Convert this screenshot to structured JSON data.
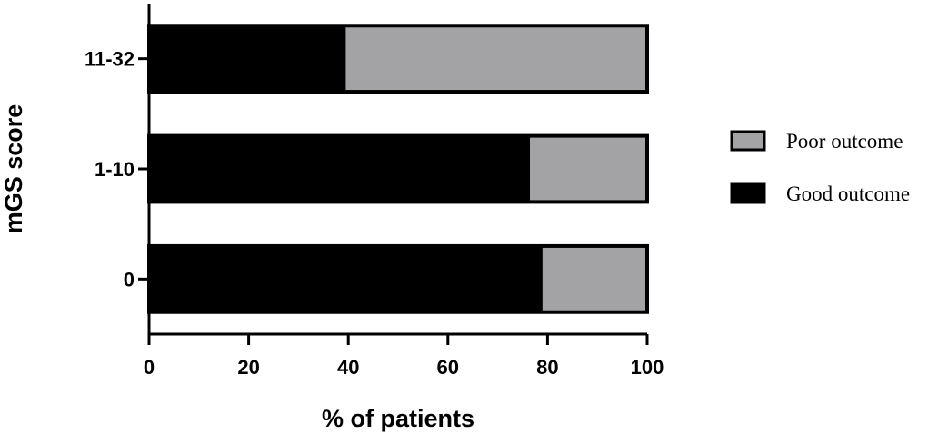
{
  "chart_data": {
    "type": "bar",
    "orientation": "horizontal",
    "stacked": true,
    "categories": [
      "0",
      "1-10",
      "11-32"
    ],
    "series": [
      {
        "name": "Good outcome",
        "color": "#000000",
        "values": [
          79,
          76.5,
          39.5
        ]
      },
      {
        "name": "Poor outcome",
        "color": "#a3a3a6",
        "values": [
          21,
          23.5,
          60.5
        ]
      }
    ],
    "xlabel": "% of patients",
    "ylabel": "mGS score",
    "xlim": [
      0,
      100
    ],
    "xticks": [
      "0",
      "20",
      "40",
      "60",
      "80",
      "100"
    ],
    "grid": false,
    "legend_position": "right",
    "legend_order": [
      "Poor outcome",
      "Good outcome"
    ]
  }
}
